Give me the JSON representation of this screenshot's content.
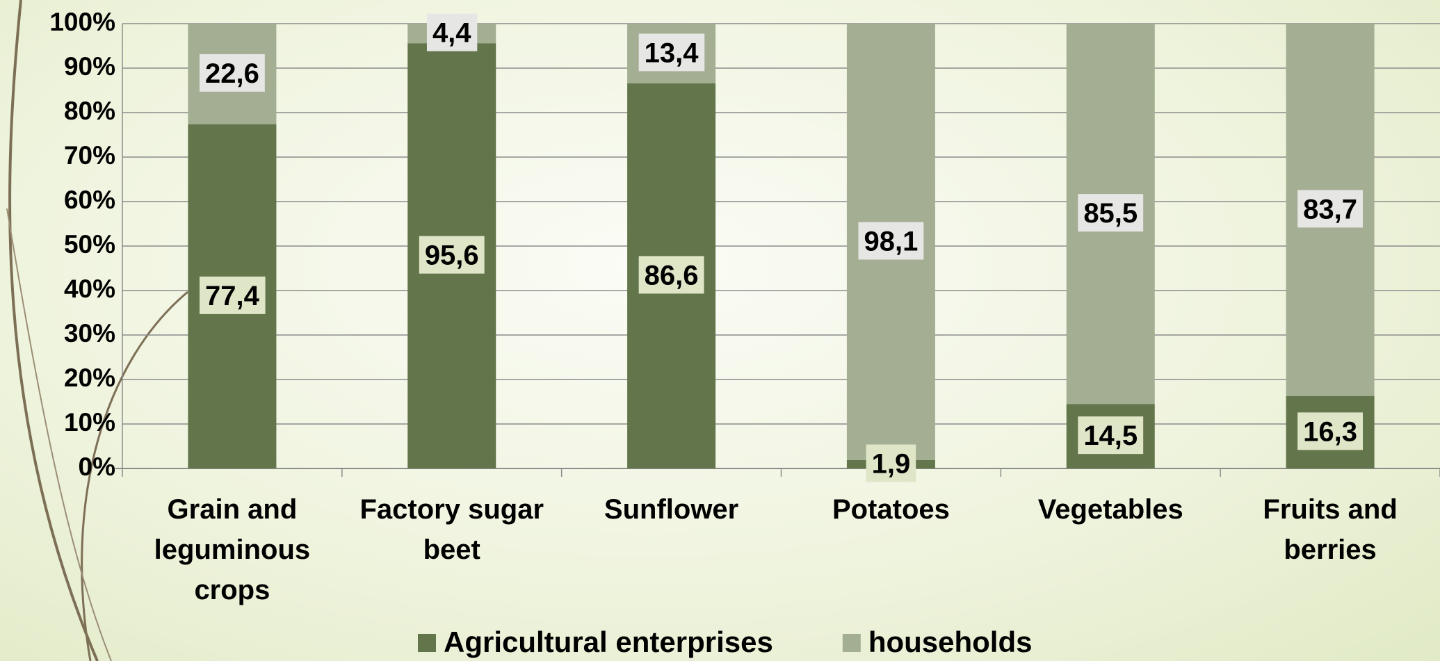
{
  "chart_data": {
    "type": "stacked_bar",
    "categories": [
      "Grain and leguminous crops",
      "Factory sugar beet",
      "Sunflower",
      "Potatoes",
      "Vegetables",
      "Fruits and berries"
    ],
    "series": [
      {
        "name": "Agricultural enterprises",
        "color": "#63754a",
        "values": [
          77.4,
          95.6,
          86.6,
          1.9,
          14.5,
          16.3
        ],
        "value_labels": [
          "77,4",
          "95,6",
          "86,6",
          "1,9",
          "14,5",
          "16,3"
        ]
      },
      {
        "name": "households",
        "color": "#a3ae92",
        "values": [
          22.6,
          4.4,
          13.4,
          98.1,
          85.5,
          83.7
        ],
        "value_labels": [
          "22,6",
          "4,4",
          "13,4",
          "98,1",
          "85,5",
          "83,7"
        ]
      }
    ],
    "ylim": [
      0,
      100
    ],
    "yticks": [
      {
        "value": 0,
        "label": "0%"
      },
      {
        "value": 10,
        "label": "10%"
      },
      {
        "value": 20,
        "label": "20%"
      },
      {
        "value": 30,
        "label": "30%"
      },
      {
        "value": 40,
        "label": "40%"
      },
      {
        "value": 50,
        "label": "50%"
      },
      {
        "value": 60,
        "label": "60%"
      },
      {
        "value": 70,
        "label": "70%"
      },
      {
        "value": 80,
        "label": "80%"
      },
      {
        "value": 90,
        "label": "90%"
      },
      {
        "value": 100,
        "label": "100%"
      }
    ],
    "grid": true,
    "legend": "bottom"
  }
}
